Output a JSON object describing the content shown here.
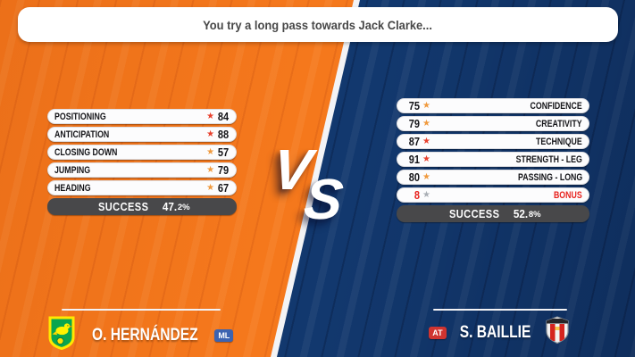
{
  "banner": {
    "text": "You try a long pass towards Jack Clarke..."
  },
  "vs": {
    "v": "V",
    "s": "S"
  },
  "colors": {
    "orange_bg": "#f5781c",
    "blue_bg": "#12386e",
    "star_red": "#e8402d",
    "star_orange": "#f09a3e",
    "star_gray": "#a9aeb4",
    "bonus_red": "#e8231f",
    "pos_ml_blue": "#3c63b0",
    "pos_at_red": "#cf3430",
    "success_bar": "#48484a"
  },
  "left_panel": {
    "rows": [
      {
        "label": "POSITIONING",
        "value": "84",
        "star": "red"
      },
      {
        "label": "ANTICIPATION",
        "value": "88",
        "star": "red"
      },
      {
        "label": "CLOSING DOWN",
        "value": "57",
        "star": "orange"
      },
      {
        "label": "JUMPING",
        "value": "79",
        "star": "orange"
      },
      {
        "label": "HEADING",
        "value": "67",
        "star": "orange"
      }
    ],
    "success_label": "SUCCESS",
    "success_value": "47.2%"
  },
  "right_panel": {
    "rows": [
      {
        "label": "CONFIDENCE",
        "value": "75",
        "star": "orange"
      },
      {
        "label": "CREATIVITY",
        "value": "79",
        "star": "orange"
      },
      {
        "label": "TECHNIQUE",
        "value": "87",
        "star": "red"
      },
      {
        "label": "STRENGTH - LEG",
        "value": "91",
        "star": "red"
      },
      {
        "label": "PASSING - LONG",
        "value": "80",
        "star": "orange"
      },
      {
        "label": "BONUS",
        "value": "8",
        "star": "gray",
        "bonus": true
      }
    ],
    "success_label": "SUCCESS",
    "success_value": "52.8%"
  },
  "left_player": {
    "name": "O. HERNÁNDEZ",
    "position": "ML",
    "club_icon": "norwich-city-crest"
  },
  "right_player": {
    "name": "S. BAILLIE",
    "position": "AT",
    "club_icon": "sunderland-crest"
  }
}
